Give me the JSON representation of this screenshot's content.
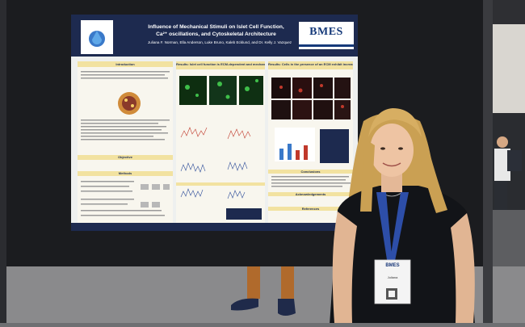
{
  "poster": {
    "title_line1": "Influence of Mechanical Stimuli on Islet Cell Function,",
    "title_line2": "Ca²⁺ oscillations, and Cytoskeletal Architecture",
    "authors": "Juliana F. Norman, Ella Anderson, Luke Bruno, Kaleb Ecklund, and Dr. Kelly J. Vazquez",
    "logo_text": "BMES",
    "sections": {
      "introduction": "Introduction",
      "results_mid": "Results: Islet cell function is ECM-dependent and mechano-sensitive",
      "results_right": "Results: Cells in the presence of an ECM exhibit increased F-actin, evidence of cytoskeletal remodeling",
      "objective": "Objective",
      "methods": "Methods",
      "conclusions": "Conclusions",
      "acknowledgements": "Acknowledgements",
      "references": "References"
    }
  },
  "badge": {
    "org": "BMES",
    "name": "Juliana"
  },
  "colors": {
    "board": "#1b1c1f",
    "poster_header": "#1d2a4f",
    "section_header": "#f2e2a0",
    "hair": "#caa053",
    "shirt": "#121418",
    "lanyard": "#2d4ea8"
  }
}
